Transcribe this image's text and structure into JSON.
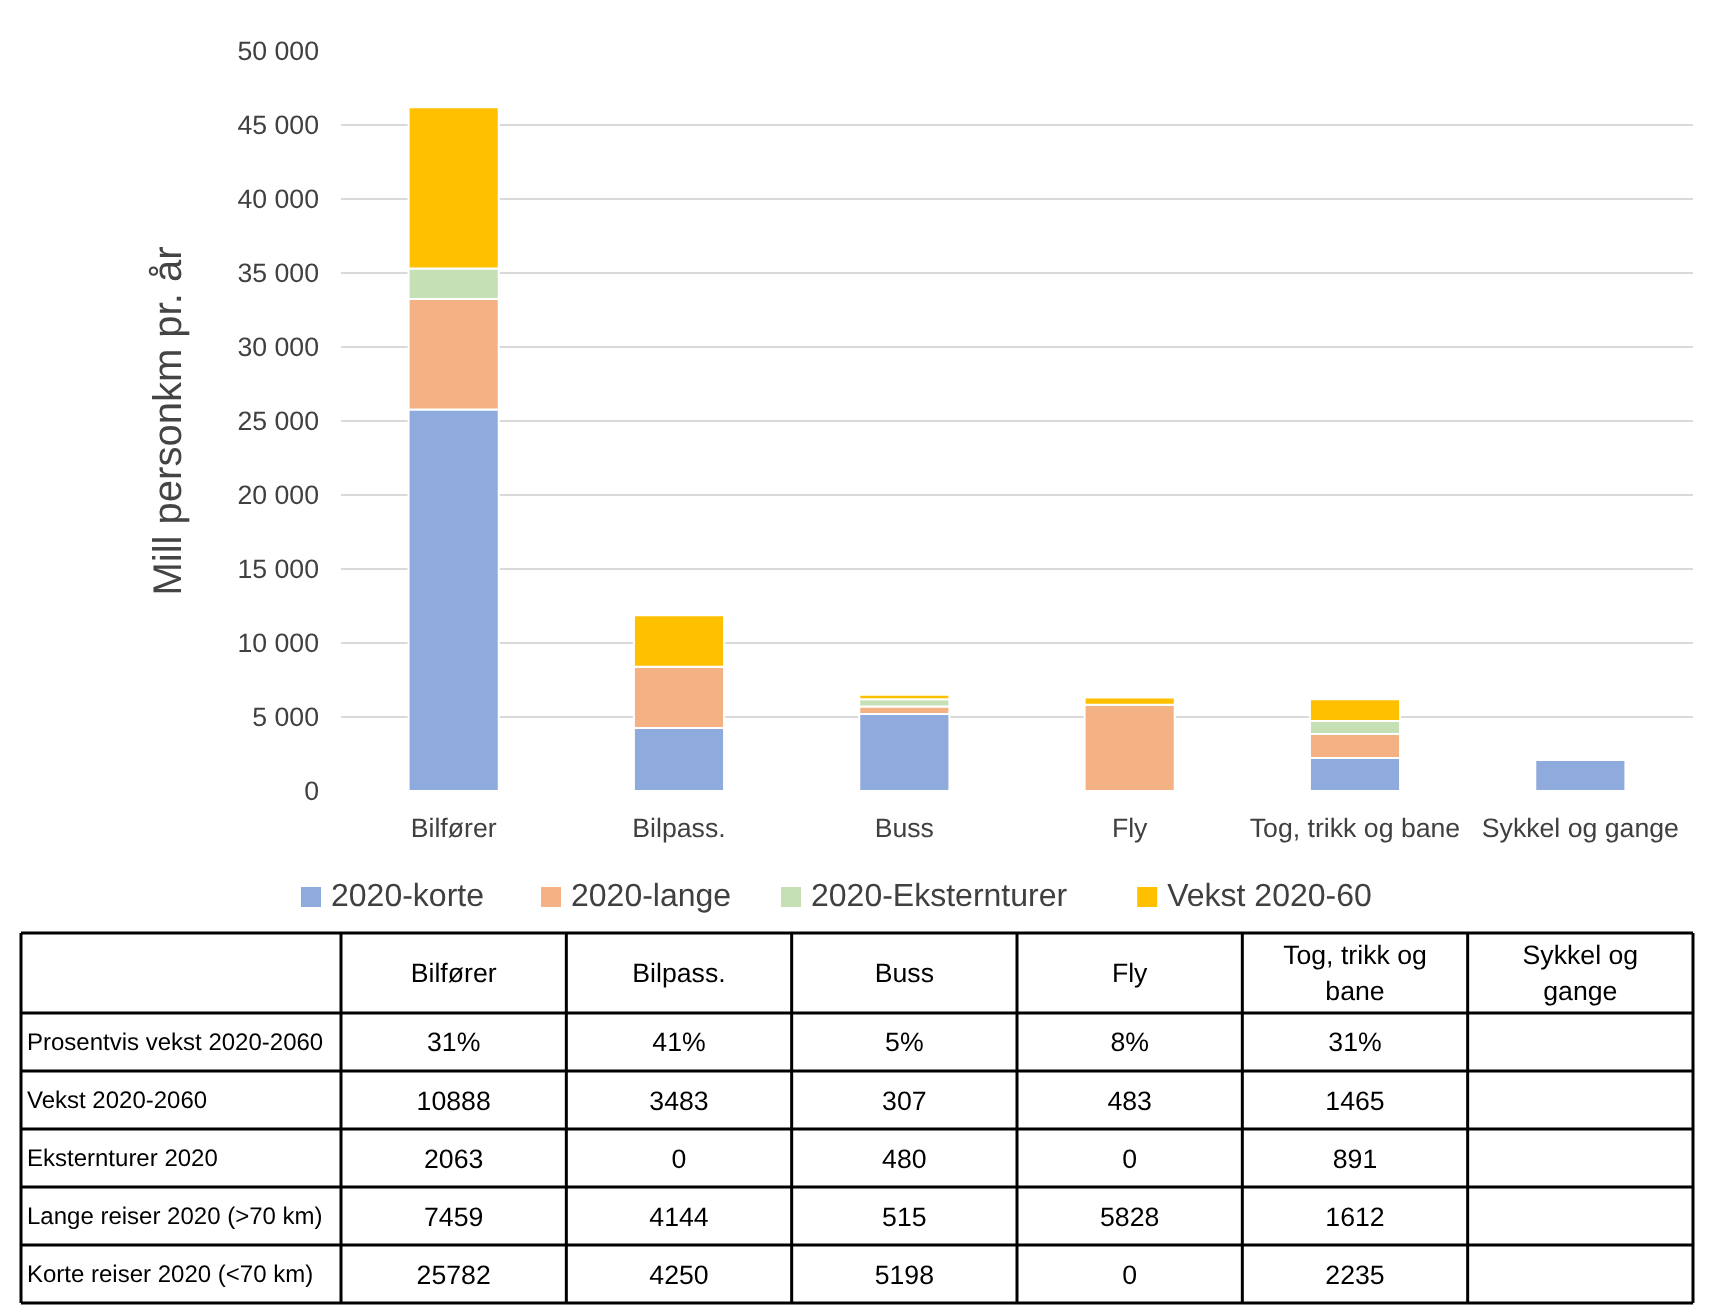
{
  "chart_data": {
    "type": "bar",
    "stacked": true,
    "ylabel": "Mill personkm pr. år",
    "categories": [
      "Bilfører",
      "Bilpass.",
      "Buss",
      "Fly",
      "Tog, trikk og bane",
      "Sykkel og gange"
    ],
    "series": [
      {
        "name": "2020-korte",
        "color": "#8faadc",
        "values": [
          25782,
          4250,
          5198,
          0,
          2235,
          2100
        ],
        "value_labels": [
          "25782",
          "4250",
          "5198",
          "0",
          "2235",
          null
        ]
      },
      {
        "name": "2020-lange",
        "color": "#f4b183",
        "values": [
          7459,
          4144,
          515,
          5828,
          1612,
          0
        ],
        "value_labels": [
          "7459",
          "4144",
          "515",
          "5828",
          "1612",
          null
        ]
      },
      {
        "name": "2020-Eksternturer",
        "color": "#c5e0b4",
        "values": [
          2063,
          0,
          480,
          0,
          891,
          0
        ],
        "value_labels": [
          "2063",
          "0",
          "480",
          "0",
          "891",
          null
        ]
      },
      {
        "name": "Vekst 2020-60",
        "color": "#ffc000",
        "values": [
          10888,
          3483,
          307,
          483,
          1465,
          null
        ],
        "value_labels": [
          "10888",
          "3483",
          "307",
          "483",
          "1465",
          null
        ]
      }
    ],
    "ylim": [
      0,
      50000
    ],
    "yticks": [
      0,
      {
        "value": 5000,
        "label": "5 000"
      },
      {
        "value": 10000,
        "label": "10 000"
      },
      {
        "value": 15000,
        "label": "15 000"
      },
      {
        "value": 20000,
        "label": "20 000"
      },
      {
        "value": 25000,
        "label": "25 000"
      },
      {
        "value": 30000,
        "label": "30 000"
      },
      {
        "value": 35000,
        "label": "35 000"
      },
      {
        "value": 40000,
        "label": "40 000"
      },
      {
        "value": 45000,
        "label": "45 000"
      },
      {
        "value": 50000,
        "label": "50 000"
      }
    ],
    "grid": "y",
    "legend": "bottom",
    "annotations": [
      "Prosentvis vekst 2020-2060",
      "Vekst 2020-2060",
      "Eksternturer 2020",
      "Lange reiser 2020 (>70 km)",
      "Korte reiser 2020 (<70 km)",
      "31%",
      "41%",
      "5%",
      "8%",
      "31%"
    ]
  }
}
